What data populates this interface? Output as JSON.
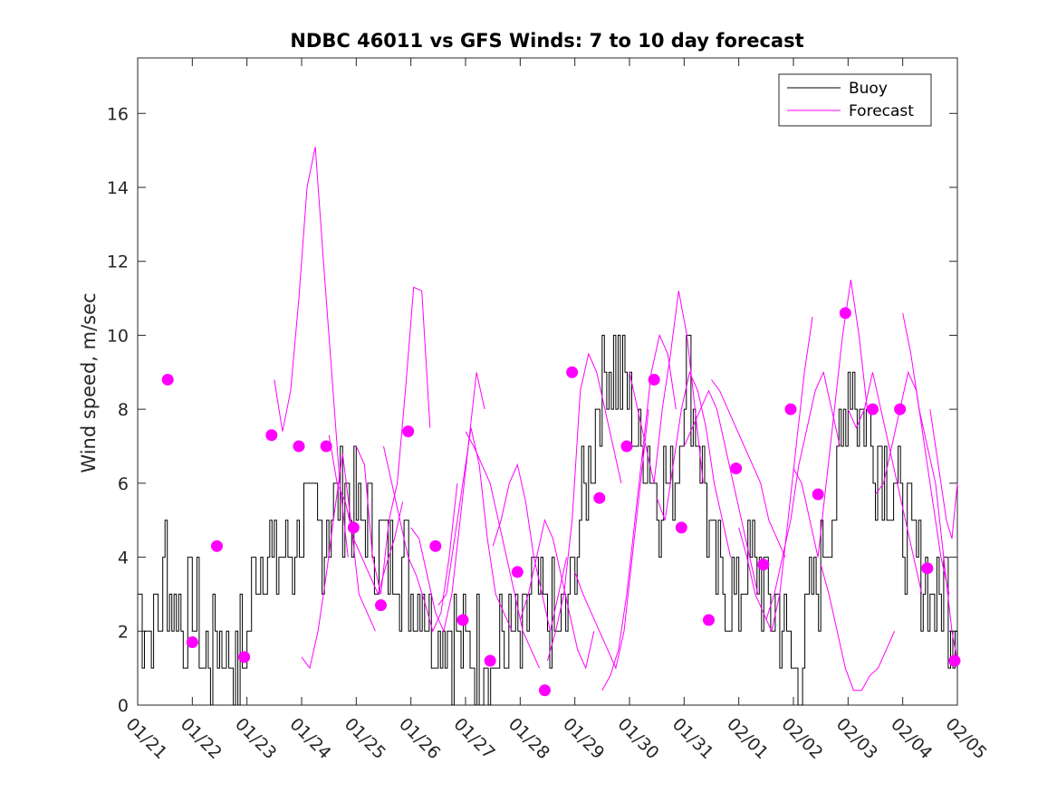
{
  "chart_data": {
    "type": "line",
    "title": "NDBC 46011 vs GFS Winds: 7 to 10 day forecast",
    "xlabel": "",
    "ylabel": "Wind speed, m/sec",
    "xlim": [
      0,
      15
    ],
    "ylim": [
      0,
      17.5
    ],
    "x_tick_values": [
      0,
      1,
      2,
      3,
      4,
      5,
      6,
      7,
      8,
      9,
      10,
      11,
      12,
      13,
      14,
      15
    ],
    "x_tick_labels": [
      "01/21",
      "01/22",
      "01/23",
      "01/24",
      "01/25",
      "01/26",
      "01/27",
      "01/28",
      "01/29",
      "01/30",
      "01/31",
      "02/01",
      "02/02",
      "02/03",
      "02/04",
      "02/05"
    ],
    "y_tick_values": [
      0,
      2,
      4,
      6,
      8,
      10,
      12,
      14,
      16
    ],
    "y_tick_labels": [
      "0",
      "2",
      "4",
      "6",
      "8",
      "10",
      "12",
      "14",
      "16"
    ],
    "legend": {
      "position": "top-right",
      "entries": [
        "Buoy",
        "Forecast"
      ]
    },
    "colors": {
      "buoy": "#000000",
      "forecast": "#ff00ff"
    },
    "buoy_approx": {
      "note": "hourly observed wind speed, approximate envelope",
      "x": [
        0,
        0.3,
        0.5,
        0.8,
        1.0,
        1.2,
        1.5,
        1.8,
        2.0,
        2.2,
        2.5,
        2.8,
        3.0,
        3.2,
        3.5,
        3.8,
        4.0,
        4.2,
        4.5,
        4.8,
        5.0,
        5.2,
        5.5,
        5.8,
        6.0,
        6.2,
        6.5,
        6.8,
        7.0,
        7.2,
        7.5,
        7.8,
        8.0,
        8.2,
        8.5,
        8.8,
        9.0,
        9.2,
        9.5,
        9.8,
        10.0,
        10.2,
        10.5,
        10.8,
        11.0,
        11.2,
        11.5,
        11.8,
        12.0,
        12.2,
        12.5,
        12.8,
        13.0,
        13.2,
        13.5,
        13.8,
        14.0,
        14.2,
        14.5,
        14.8,
        15.0
      ],
      "y": [
        3,
        2,
        4,
        2,
        3,
        1,
        2,
        1,
        2,
        4,
        4,
        4,
        5,
        5,
        5,
        6,
        5,
        5,
        4,
        4,
        3,
        3,
        2,
        2,
        1,
        2,
        1,
        2,
        1,
        3,
        2,
        2,
        4,
        6,
        9,
        9,
        8,
        7,
        6,
        6,
        9,
        8,
        4,
        3,
        3,
        4,
        3,
        2,
        1,
        2,
        4,
        6,
        9,
        8,
        7,
        6,
        5,
        4,
        3,
        3,
        2
      ]
    },
    "forecast_series": [
      {
        "name": "Forecast",
        "x": [
          3.0,
          3.15,
          3.3,
          3.45,
          3.6,
          3.75,
          3.9,
          4.05,
          4.2,
          4.35
        ],
        "y": [
          1.3,
          1.0,
          2.0,
          3.5,
          5.2,
          6.8,
          5.0,
          3.0,
          2.5,
          2.0
        ]
      },
      {
        "name": "Forecast",
        "x": [
          2.5,
          2.65,
          2.8,
          2.95,
          3.1,
          3.25,
          3.4,
          3.55,
          3.7,
          3.85
        ],
        "y": [
          8.8,
          7.4,
          8.5,
          11.0,
          14.0,
          15.1,
          12.0,
          9.0,
          6.0,
          4.0
        ]
      },
      {
        "name": "Forecast",
        "x": [
          3.5,
          3.65,
          3.8,
          3.95,
          4.1,
          4.25,
          4.4,
          4.55,
          4.7,
          4.85
        ],
        "y": [
          7.3,
          6.0,
          5.5,
          4.5,
          4.0,
          3.5,
          3.0,
          3.8,
          4.5,
          5.5
        ]
      },
      {
        "name": "Forecast",
        "x": [
          4.0,
          4.15,
          4.3,
          4.45,
          4.6,
          4.75,
          4.9,
          5.05,
          5.2,
          5.35
        ],
        "y": [
          7.0,
          6.5,
          4.0,
          3.0,
          5.0,
          6.0,
          8.5,
          11.3,
          11.2,
          7.5
        ]
      },
      {
        "name": "Forecast",
        "x": [
          4.5,
          4.65,
          4.8,
          4.95,
          5.1,
          5.25,
          5.4,
          5.55,
          5.7,
          5.85
        ],
        "y": [
          7.0,
          6.0,
          5.0,
          4.0,
          3.5,
          2.8,
          2.0,
          2.5,
          4.0,
          6.0
        ]
      },
      {
        "name": "Forecast",
        "x": [
          5.0,
          5.15,
          5.3,
          5.45,
          5.6,
          5.75,
          5.9,
          6.05,
          6.2,
          6.35
        ],
        "y": [
          4.8,
          4.5,
          3.5,
          2.5,
          2.0,
          3.0,
          5.0,
          7.0,
          9.0,
          8.0
        ]
      },
      {
        "name": "Forecast",
        "x": [
          5.5,
          5.65,
          5.8,
          5.95,
          6.1,
          6.25,
          6.4,
          6.55,
          6.7,
          6.85
        ],
        "y": [
          2.7,
          3.0,
          4.5,
          6.0,
          7.5,
          6.5,
          4.5,
          3.0,
          2.5,
          2.0
        ]
      },
      {
        "name": "Forecast",
        "x": [
          6.0,
          6.15,
          6.3,
          6.45,
          6.6,
          6.75,
          6.9,
          7.05,
          7.2,
          7.35
        ],
        "y": [
          7.4,
          7.0,
          6.5,
          6.0,
          5.0,
          4.0,
          3.0,
          2.0,
          1.5,
          1.0
        ]
      },
      {
        "name": "Forecast",
        "x": [
          6.5,
          6.65,
          6.8,
          6.95,
          7.1,
          7.25,
          7.4,
          7.55,
          7.7,
          7.85
        ],
        "y": [
          4.3,
          5.0,
          6.0,
          6.5,
          5.5,
          4.0,
          3.0,
          2.0,
          3.0,
          4.0
        ]
      },
      {
        "name": "Forecast",
        "x": [
          7.0,
          7.15,
          7.3,
          7.45,
          7.6,
          7.75,
          7.9,
          8.05,
          8.2,
          8.35
        ],
        "y": [
          2.3,
          3.0,
          4.0,
          5.0,
          4.5,
          3.5,
          2.5,
          1.5,
          1.0,
          2.0
        ]
      },
      {
        "name": "Forecast",
        "x": [
          7.5,
          7.65,
          7.8,
          7.95,
          8.1,
          8.25,
          8.4,
          8.55,
          8.7,
          8.85
        ],
        "y": [
          1.2,
          2.0,
          3.0,
          5.0,
          8.5,
          9.5,
          9.0,
          8.0,
          7.0,
          6.0
        ]
      },
      {
        "name": "Forecast",
        "x": [
          8.0,
          8.15,
          8.3,
          8.45,
          8.6,
          8.75,
          8.9,
          9.05,
          9.2,
          9.35
        ],
        "y": [
          3.6,
          3.0,
          2.5,
          2.0,
          1.5,
          1.0,
          2.0,
          4.0,
          6.0,
          8.0
        ]
      },
      {
        "name": "Forecast",
        "x": [
          8.5,
          8.65,
          8.8,
          8.95,
          9.1,
          9.25,
          9.4,
          9.55,
          9.7,
          9.85
        ],
        "y": [
          0.4,
          0.8,
          1.5,
          3.0,
          5.0,
          7.0,
          9.0,
          10.0,
          9.5,
          8.0
        ]
      },
      {
        "name": "Forecast",
        "x": [
          9.0,
          9.15,
          9.3,
          9.45,
          9.6,
          9.75,
          9.9,
          10.05,
          10.2,
          10.35
        ],
        "y": [
          9.0,
          8.0,
          7.0,
          6.0,
          8.0,
          9.5,
          11.2,
          10.0,
          8.0,
          6.0
        ]
      },
      {
        "name": "Forecast",
        "x": [
          9.5,
          9.65,
          9.8,
          9.95,
          10.1,
          10.25,
          10.4,
          10.55,
          10.7,
          10.85
        ],
        "y": [
          5.6,
          5.0,
          6.5,
          8.0,
          9.0,
          8.5,
          7.5,
          6.0,
          5.0,
          4.0
        ]
      },
      {
        "name": "Forecast",
        "x": [
          10.0,
          10.15,
          10.3,
          10.45,
          10.6,
          10.75,
          10.9,
          11.05,
          11.2,
          11.35
        ],
        "y": [
          7.0,
          7.5,
          8.0,
          8.5,
          8.0,
          7.0,
          6.0,
          5.0,
          4.0,
          3.0
        ]
      },
      {
        "name": "Forecast",
        "x": [
          10.5,
          10.65,
          10.8,
          10.95,
          11.1,
          11.25,
          11.4,
          11.55,
          11.7,
          11.85
        ],
        "y": [
          8.8,
          8.5,
          8.0,
          7.5,
          7.0,
          6.5,
          6.0,
          5.0,
          4.5,
          4.0
        ]
      },
      {
        "name": "Forecast",
        "x": [
          11.0,
          11.15,
          11.3,
          11.45,
          11.6,
          11.75,
          11.9,
          12.05,
          12.2,
          12.35
        ],
        "y": [
          4.8,
          4.0,
          3.0,
          2.5,
          2.0,
          3.0,
          5.0,
          7.0,
          9.0,
          10.5
        ]
      },
      {
        "name": "Forecast",
        "x": [
          11.5,
          11.65,
          11.8,
          11.95,
          12.1,
          12.25,
          12.4,
          12.55,
          12.7,
          12.85
        ],
        "y": [
          2.3,
          3.0,
          4.0,
          5.0,
          6.5,
          7.5,
          8.5,
          9.0,
          8.0,
          7.0
        ]
      },
      {
        "name": "Forecast",
        "x": [
          12.0,
          12.15,
          12.3,
          12.45,
          12.6,
          12.75,
          12.9,
          13.05,
          13.2,
          13.35
        ],
        "y": [
          6.4,
          6.0,
          5.0,
          4.0,
          6.0,
          8.0,
          10.0,
          11.5,
          10.0,
          8.0
        ]
      },
      {
        "name": "Forecast",
        "x": [
          12.5,
          12.65,
          12.8,
          12.95,
          13.1,
          13.25,
          13.4,
          13.55,
          13.7,
          13.85
        ],
        "y": [
          3.8,
          3.0,
          2.0,
          1.0,
          0.4,
          0.4,
          0.8,
          1.0,
          1.5,
          2.0
        ]
      },
      {
        "name": "Forecast",
        "x": [
          13.0,
          13.15,
          13.3,
          13.45,
          13.6,
          13.75,
          13.9,
          14.05,
          14.2,
          14.35
        ],
        "y": [
          8.0,
          7.5,
          8.0,
          9.0,
          8.0,
          7.0,
          6.0,
          5.0,
          4.0,
          3.0
        ]
      },
      {
        "name": "Forecast",
        "x": [
          13.5,
          13.65,
          13.8,
          13.95,
          14.1,
          14.25,
          14.4,
          14.55,
          14.7,
          14.85
        ],
        "y": [
          5.7,
          6.0,
          7.0,
          8.0,
          9.0,
          8.5,
          7.0,
          5.5,
          4.0,
          3.0
        ]
      },
      {
        "name": "Forecast",
        "x": [
          14.0,
          14.15,
          14.3,
          14.45,
          14.6,
          14.75,
          14.9,
          15.0
        ],
        "y": [
          10.6,
          9.5,
          8.0,
          7.0,
          6.0,
          4.0,
          2.0,
          1.2
        ]
      },
      {
        "name": "Forecast",
        "x": [
          14.5,
          14.6,
          14.7,
          14.8,
          14.9,
          15.0
        ],
        "y": [
          8.0,
          7.0,
          6.0,
          5.0,
          4.5,
          6.0
        ]
      }
    ],
    "forecast_markers": {
      "x": [
        0.55,
        1.0,
        1.45,
        1.95,
        2.45,
        2.95,
        3.45,
        3.95,
        4.45,
        4.95,
        5.45,
        5.95,
        6.45,
        6.95,
        7.45,
        7.95,
        8.45,
        8.95,
        9.45,
        9.95,
        10.45,
        10.95,
        11.45,
        11.95,
        12.45,
        12.95,
        13.45,
        13.95,
        14.45,
        14.95
      ],
      "y": [
        8.8,
        1.7,
        4.3,
        1.3,
        7.3,
        7.0,
        7.0,
        4.8,
        2.7,
        7.4,
        4.3,
        2.3,
        1.2,
        3.6,
        0.4,
        9.0,
        5.6,
        7.0,
        8.8,
        4.8,
        2.3,
        6.4,
        3.8,
        8.0,
        5.7,
        10.6,
        8.0,
        8.0,
        3.7,
        1.2
      ]
    }
  }
}
